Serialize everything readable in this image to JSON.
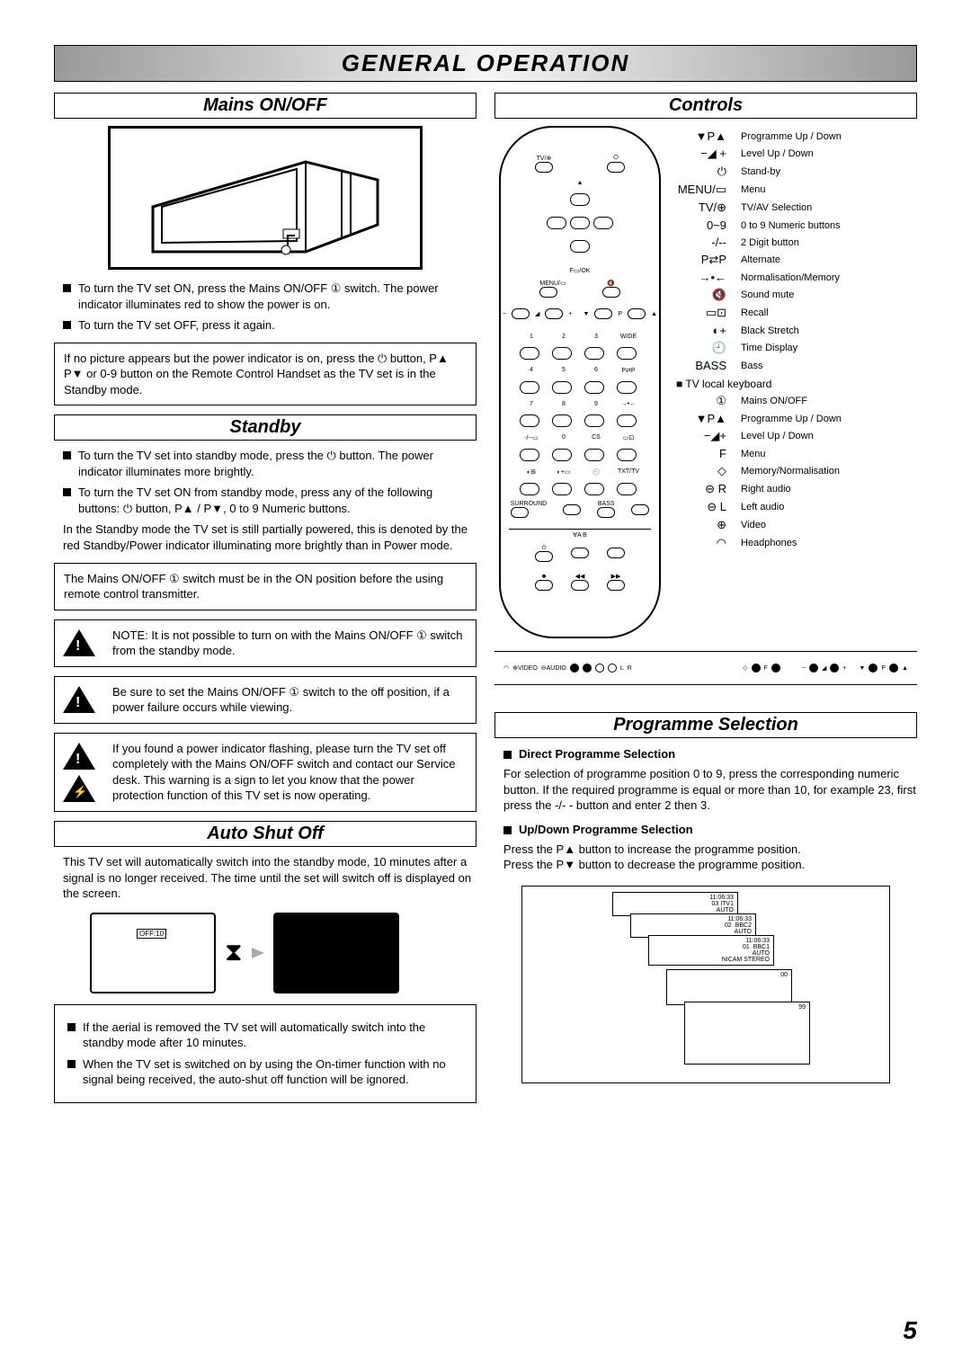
{
  "page_title": "GENERAL OPERATION",
  "page_number": "5",
  "left": {
    "mains_head": "Mains ON/OFF",
    "mains_b1": "To turn the TV set ON, press the Mains ON/OFF ① switch. The power indicator illuminates red to show the power is on.",
    "mains_b2": "To turn the TV set OFF, press it again.",
    "mains_box": "If no picture appears but the power indicator is on, press the ⏻ button, P▲ P▼ or 0-9 button on the Remote Control Handset as the TV set is in the Standby mode.",
    "standby_head": "Standby",
    "standby_b1": "To turn the TV set into standby mode, press the ⏻ button. The power indicator illuminates more brightly.",
    "standby_b2": "To turn the TV set ON from standby mode, press any of the following buttons: ⏻ button, P▲ / P▼, 0 to 9 Numeric buttons.",
    "standby_body": "In the Standby mode the TV set is still partially powered, this is denoted by the red Standby/Power indicator illuminating more brightly than in Power mode.",
    "standby_box": "The Mains ON/OFF ① switch must be in the ON position before the using remote control transmitter.",
    "warn1": "NOTE: It is not possible to turn on with the Mains ON/OFF ① switch from the standby mode.",
    "warn2": "Be sure to set the Mains ON/OFF ① switch to the off position, if a power failure occurs while viewing.",
    "warn3": "If you found a power indicator flashing, please turn the TV set off completely with the Mains ON/OFF switch and contact our Service desk. This warning is a sign to let you know that the power protection function of this TV set is now operating.",
    "auto_head": "Auto Shut Off",
    "auto_body": "This TV set will automatically switch into the standby mode, 10 minutes after a signal is no longer received. The time until the set will switch off is displayed on the screen.",
    "off_label": "OFF:10",
    "auto_b1": "If the aerial is removed the TV set will automatically switch into the standby mode after 10 minutes.",
    "auto_b2": "When the TV set is switched on by using the On-timer function with no signal being received, the auto-shut off function will be ignored."
  },
  "right": {
    "controls_head": "Controls",
    "controls": [
      {
        "sym": "▼P▲",
        "lbl": "Programme Up / Down"
      },
      {
        "sym": "−◢ +",
        "lbl": "Level  Up / Down"
      },
      {
        "sym": "⏻",
        "lbl": "Stand-by"
      },
      {
        "sym": "MENU/▭",
        "lbl": "Menu"
      },
      {
        "sym": "TV/⊕",
        "lbl": "TV/AV Selection"
      },
      {
        "sym": "0~9",
        "lbl": "0 to 9 Numeric buttons"
      },
      {
        "sym": "-/--",
        "lbl": "2 Digit button"
      },
      {
        "sym": "P⇄P",
        "lbl": "Alternate"
      },
      {
        "sym": "→•←",
        "lbl": "Normalisation/Memory"
      },
      {
        "sym": "🔇",
        "lbl": "Sound mute"
      },
      {
        "sym": "▭⊡",
        "lbl": "Recall"
      },
      {
        "sym": "◐+",
        "lbl": "Black Stretch"
      },
      {
        "sym": "🕘",
        "lbl": "Time Display"
      },
      {
        "sym": "BASS",
        "lbl": "Bass"
      }
    ],
    "kb_head": "■ TV local keyboard",
    "kb": [
      {
        "sym": "①",
        "lbl": "Mains ON/OFF"
      },
      {
        "sym": "▼P▲",
        "lbl": "Programme Up / Down"
      },
      {
        "sym": "−◢+",
        "lbl": "Level Up / Down"
      },
      {
        "sym": "F",
        "lbl": "Menu"
      },
      {
        "sym": "◇",
        "lbl": "Memory/Normalisation"
      },
      {
        "sym": "⊖ R",
        "lbl": "Right audio"
      },
      {
        "sym": "⊖ L",
        "lbl": "Left audio"
      },
      {
        "sym": "⊕",
        "lbl": "Video"
      },
      {
        "sym": "◠",
        "lbl": "Headphones"
      }
    ],
    "panel_labels": {
      "video": "⊕VIDEO",
      "audio": "⊖AUDIO",
      "l": "L",
      "r": "R",
      "f": "F",
      "p": "P"
    },
    "prog_head": "Programme Selection",
    "direct_head": "Direct Programme Selection",
    "direct_body": "For selection of programme position 0 to 9, press the corresponding numeric button.  If the required programme is equal or more than 10, for example 23, first press the -/- - button and enter 2 then 3.",
    "updown_head": "Up/Down Programme Selection",
    "updown_body1": "Press the P▲ button to increase the programme position.",
    "updown_body2": "Press the P▼ button to decrease the programme position.",
    "win1": "11:06:33\n03 ITV1\nAUTO",
    "win2": "11:06:33\n02  BBC2\nAUTO",
    "win3": "11:06:33\n01  BBC1\nAUTO\nNICAM STEREO",
    "win4": "00",
    "win5": "99"
  },
  "remote_labels": {
    "tv": "TV/⊕",
    "fok": "F▭/OK",
    "menu": "MENU/▭",
    "surround": "SURROUND",
    "bass": "BASS",
    "ab": "∀A B",
    "wide": "WIDE",
    "pp": "P⇄P",
    "cs": "CS",
    "txt": "TXT/TV"
  },
  "colors": {
    "fg": "#000000",
    "bg": "#ffffff",
    "gray": "#999999"
  }
}
